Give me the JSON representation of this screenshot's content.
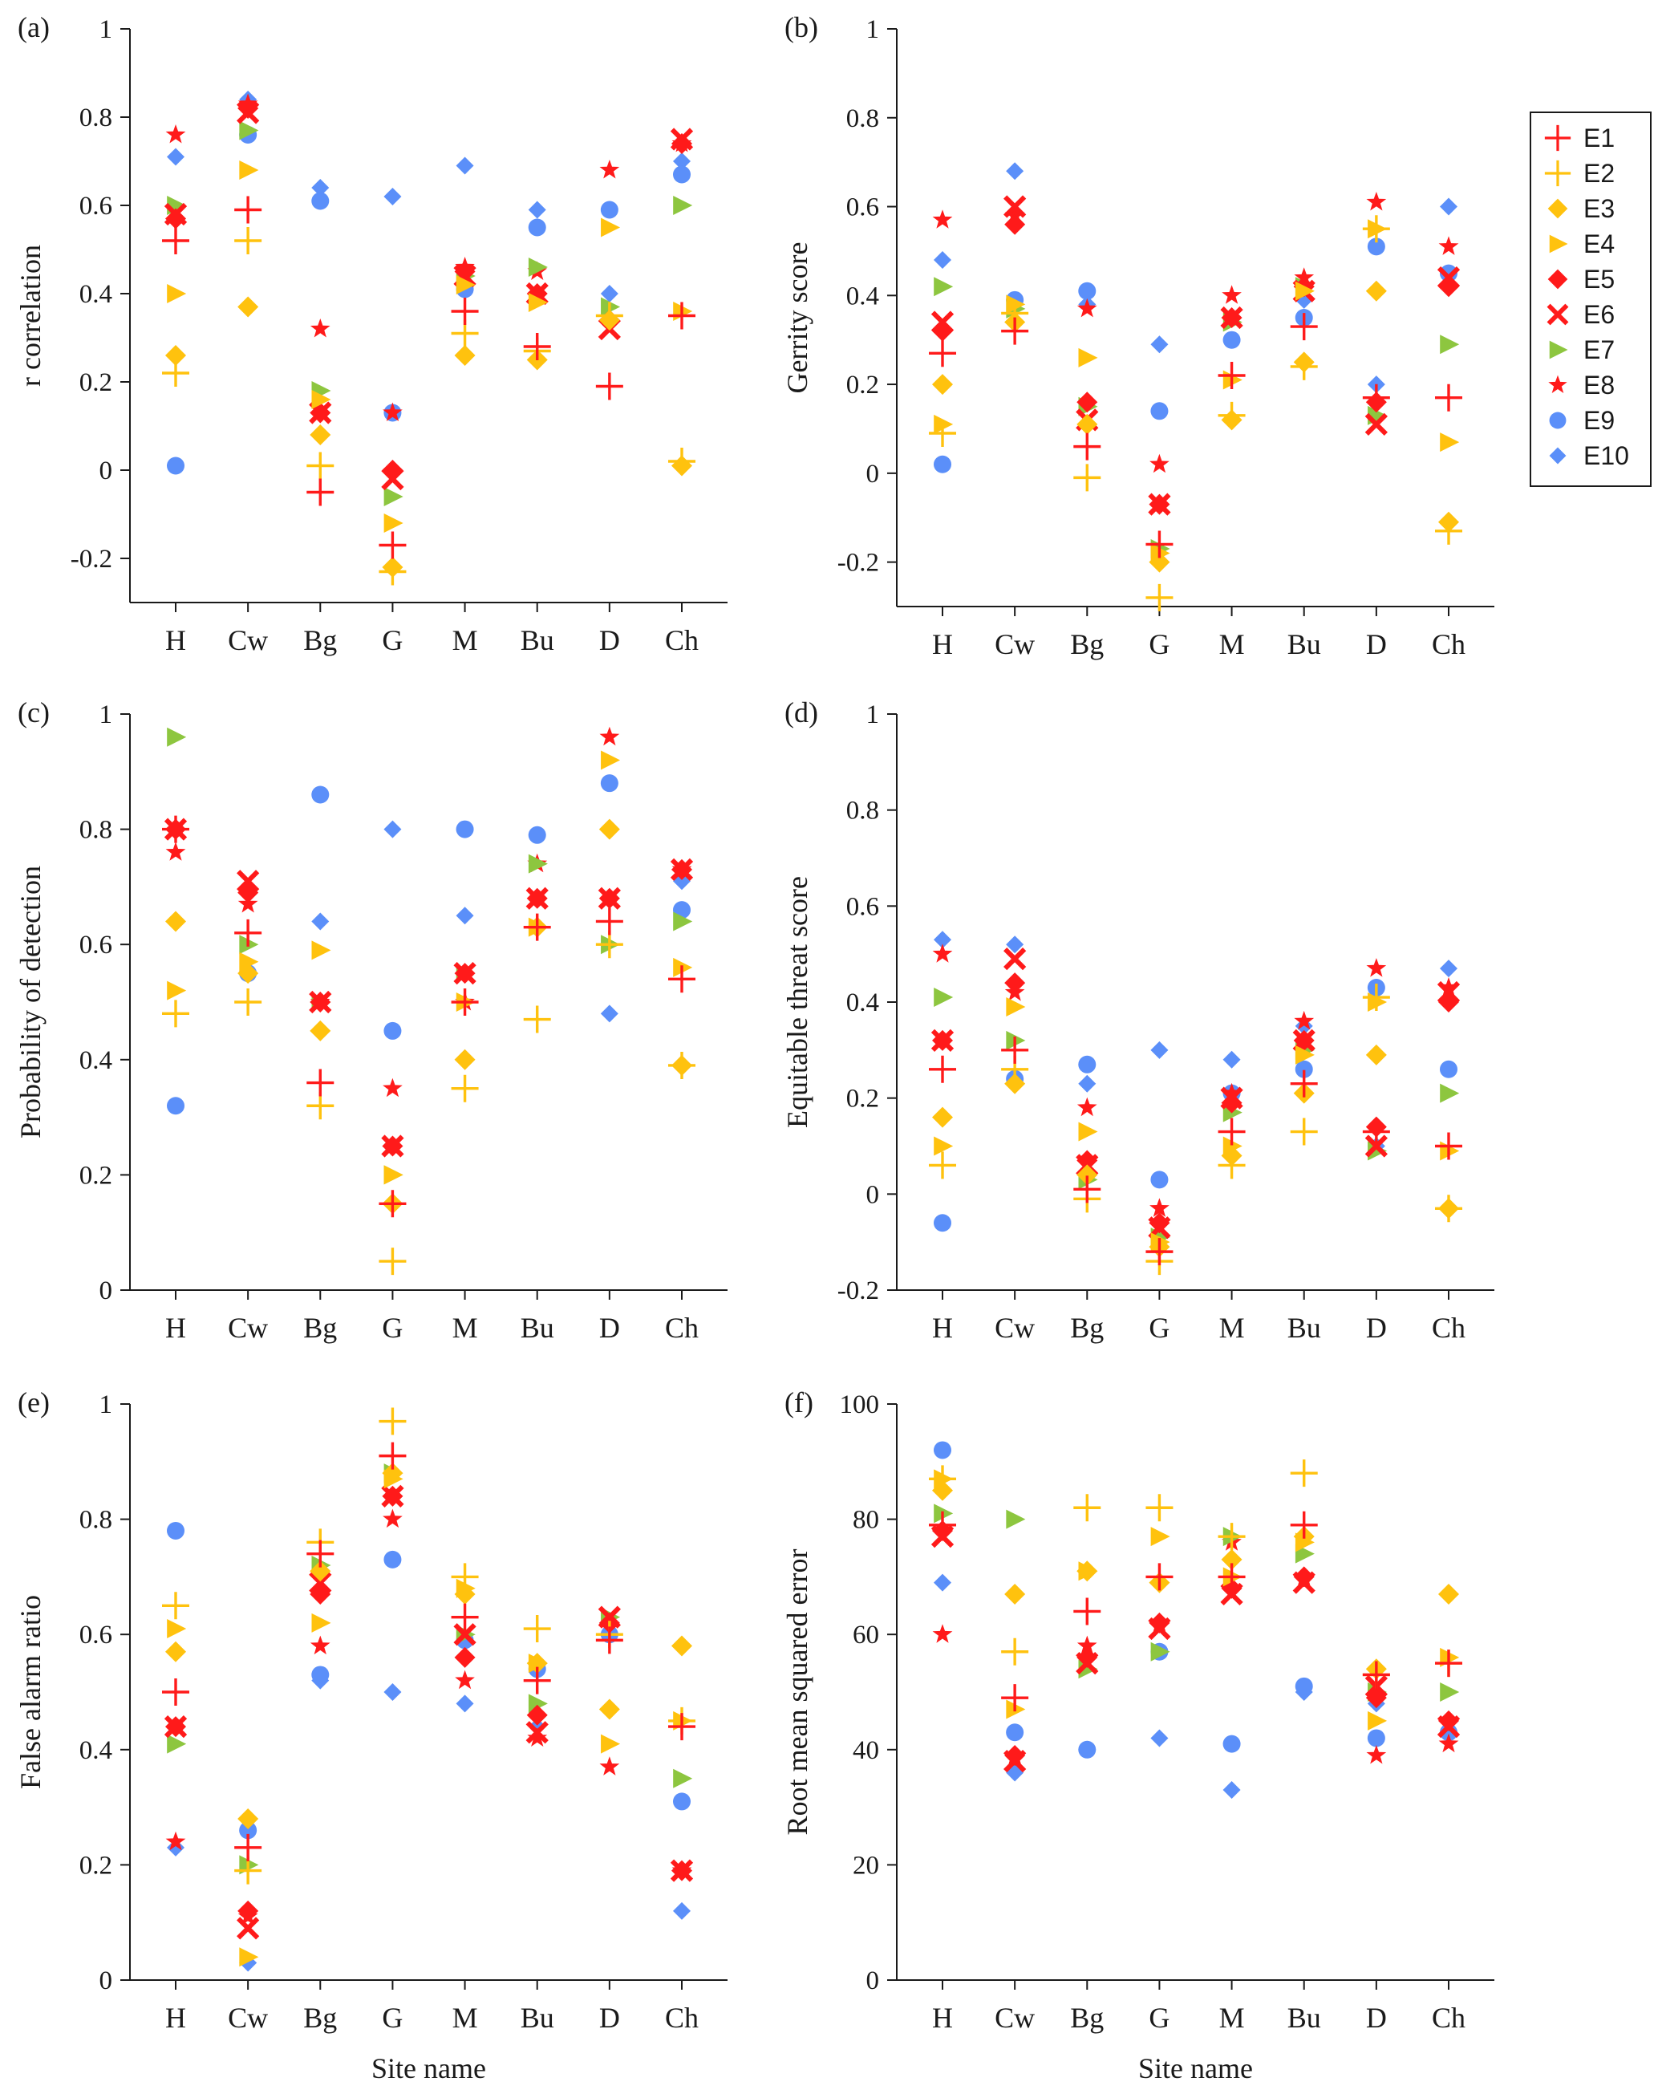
{
  "figure": {
    "categories": [
      "H",
      "Cw",
      "Bg",
      "G",
      "M",
      "Bu",
      "D",
      "Ch"
    ],
    "legend": [
      {
        "key": "E1",
        "label": "E1",
        "marker": "plus",
        "color": "#ff1a1a"
      },
      {
        "key": "E2",
        "label": "E2",
        "marker": "plus",
        "color": "#ffc20e"
      },
      {
        "key": "E3",
        "label": "E3",
        "marker": "diamond",
        "color": "#ffc20e"
      },
      {
        "key": "E4",
        "label": "E4",
        "marker": "triangle-right",
        "color": "#ffc20e"
      },
      {
        "key": "E5",
        "label": "E5",
        "marker": "diamond",
        "color": "#ff1a1a"
      },
      {
        "key": "E6",
        "label": "E6",
        "marker": "cross",
        "color": "#ff1a1a"
      },
      {
        "key": "E7",
        "label": "E7",
        "marker": "triangle-right",
        "color": "#8dc63f"
      },
      {
        "key": "E8",
        "label": "E8",
        "marker": "star",
        "color": "#ff1a1a"
      },
      {
        "key": "E9",
        "label": "E9",
        "marker": "circle",
        "color": "#5b8ff9"
      },
      {
        "key": "E10",
        "label": "E10",
        "marker": "diamond-small",
        "color": "#5b8ff9"
      }
    ]
  },
  "chart_data": [
    {
      "type": "scatter",
      "panel": "(a)",
      "title": "",
      "ylabel": "r correlation",
      "xlabel": "",
      "ylim": [
        -0.3,
        1
      ],
      "yticks": [
        -0.2,
        0,
        0.2,
        0.4,
        0.6,
        0.8,
        1
      ],
      "ytick_labels": [
        "-0.2",
        "0",
        "0.2",
        "0.4",
        "0.6",
        "0.8",
        "1"
      ],
      "categories": [
        "H",
        "Cw",
        "Bg",
        "G",
        "M",
        "Bu",
        "D",
        "Ch"
      ],
      "series": [
        {
          "name": "E1",
          "values": [
            0.52,
            0.59,
            -0.05,
            -0.17,
            0.36,
            0.28,
            0.19,
            0.35
          ]
        },
        {
          "name": "E2",
          "values": [
            0.22,
            0.52,
            0.01,
            -0.23,
            0.31,
            0.27,
            0.35,
            0.02
          ]
        },
        {
          "name": "E3",
          "values": [
            0.26,
            0.37,
            0.08,
            -0.22,
            0.26,
            0.25,
            0.34,
            0.01
          ]
        },
        {
          "name": "E4",
          "values": [
            0.4,
            0.68,
            0.16,
            -0.12,
            0.42,
            0.38,
            0.55,
            0.36
          ]
        },
        {
          "name": "E5",
          "values": [
            0.57,
            0.82,
            0.13,
            0.0,
            0.45,
            0.4,
            0.34,
            0.74
          ]
        },
        {
          "name": "E6",
          "values": [
            0.58,
            0.81,
            0.13,
            -0.02,
            0.44,
            0.4,
            0.32,
            0.75
          ]
        },
        {
          "name": "E7",
          "values": [
            0.6,
            0.77,
            0.18,
            -0.06,
            0.44,
            0.46,
            0.37,
            0.6
          ]
        },
        {
          "name": "E8",
          "values": [
            0.76,
            0.83,
            0.32,
            0.13,
            0.46,
            0.45,
            0.68,
            0.74
          ]
        },
        {
          "name": "E9",
          "values": [
            0.01,
            0.76,
            0.61,
            0.13,
            0.41,
            0.55,
            0.59,
            0.67
          ]
        },
        {
          "name": "E10",
          "values": [
            0.71,
            0.84,
            0.64,
            0.62,
            0.69,
            0.59,
            0.4,
            0.7
          ]
        }
      ]
    },
    {
      "type": "scatter",
      "panel": "(b)",
      "title": "",
      "ylabel": "Gerrity score",
      "xlabel": "",
      "ylim": [
        -0.3,
        1
      ],
      "yticks": [
        -0.2,
        0,
        0.2,
        0.4,
        0.6,
        0.8,
        1
      ],
      "ytick_labels": [
        "-0.2",
        "0",
        "0.2",
        "0.4",
        "0.6",
        "0.8",
        "1"
      ],
      "categories": [
        "H",
        "Cw",
        "Bg",
        "G",
        "M",
        "Bu",
        "D",
        "Ch"
      ],
      "series": [
        {
          "name": "E1",
          "values": [
            0.27,
            0.32,
            0.06,
            -0.16,
            0.22,
            0.33,
            0.17,
            0.17
          ]
        },
        {
          "name": "E2",
          "values": [
            0.09,
            0.36,
            -0.01,
            -0.28,
            0.13,
            0.24,
            0.55,
            -0.13
          ]
        },
        {
          "name": "E3",
          "values": [
            0.2,
            0.34,
            0.11,
            -0.2,
            0.12,
            0.25,
            0.41,
            -0.11
          ]
        },
        {
          "name": "E4",
          "values": [
            0.11,
            0.38,
            0.26,
            -0.18,
            0.21,
            0.41,
            0.55,
            0.07
          ]
        },
        {
          "name": "E5",
          "values": [
            0.32,
            0.56,
            0.16,
            -0.07,
            0.35,
            0.42,
            0.16,
            0.42
          ]
        },
        {
          "name": "E6",
          "values": [
            0.34,
            0.6,
            0.12,
            -0.07,
            0.35,
            0.41,
            0.11,
            0.44
          ]
        },
        {
          "name": "E7",
          "values": [
            0.42,
            0.37,
            0.15,
            -0.17,
            0.34,
            0.42,
            0.13,
            0.29
          ]
        },
        {
          "name": "E8",
          "values": [
            0.57,
            0.58,
            0.37,
            0.02,
            0.4,
            0.44,
            0.61,
            0.51
          ]
        },
        {
          "name": "E9",
          "values": [
            0.02,
            0.39,
            0.41,
            0.14,
            0.3,
            0.35,
            0.51,
            0.45
          ]
        },
        {
          "name": "E10",
          "values": [
            0.48,
            0.68,
            0.38,
            0.29,
            0.35,
            0.39,
            0.2,
            0.6
          ]
        }
      ]
    },
    {
      "type": "scatter",
      "panel": "(c)",
      "title": "",
      "ylabel": "Probability of detection",
      "xlabel": "",
      "ylim": [
        0,
        1
      ],
      "yticks": [
        0,
        0.2,
        0.4,
        0.6,
        0.8,
        1
      ],
      "ytick_labels": [
        "0",
        "0.2",
        "0.4",
        "0.6",
        "0.8",
        "1"
      ],
      "categories": [
        "H",
        "Cw",
        "Bg",
        "G",
        "M",
        "Bu",
        "D",
        "Ch"
      ],
      "series": [
        {
          "name": "E1",
          "values": [
            0.8,
            0.62,
            0.36,
            0.15,
            0.5,
            0.63,
            0.64,
            0.54
          ]
        },
        {
          "name": "E2",
          "values": [
            0.48,
            0.5,
            0.32,
            0.05,
            0.35,
            0.47,
            0.6,
            0.39
          ]
        },
        {
          "name": "E3",
          "values": [
            0.64,
            0.55,
            0.45,
            0.15,
            0.4,
            0.63,
            0.8,
            0.39
          ]
        },
        {
          "name": "E4",
          "values": [
            0.52,
            0.57,
            0.59,
            0.2,
            0.5,
            0.63,
            0.92,
            0.56
          ]
        },
        {
          "name": "E5",
          "values": [
            0.8,
            0.69,
            0.5,
            0.25,
            0.55,
            0.68,
            0.68,
            0.73
          ]
        },
        {
          "name": "E6",
          "values": [
            0.8,
            0.71,
            0.5,
            0.25,
            0.55,
            0.68,
            0.68,
            0.73
          ]
        },
        {
          "name": "E7",
          "values": [
            0.96,
            0.6,
            0.5,
            0.2,
            0.55,
            0.74,
            0.6,
            0.64
          ]
        },
        {
          "name": "E8",
          "values": [
            0.76,
            0.67,
            0.5,
            0.35,
            0.5,
            0.74,
            0.96,
            0.73
          ]
        },
        {
          "name": "E9",
          "values": [
            0.32,
            0.55,
            0.86,
            0.45,
            0.8,
            0.79,
            0.88,
            0.66
          ]
        },
        {
          "name": "E10",
          "values": [
            0.8,
            0.69,
            0.64,
            0.8,
            0.65,
            0.79,
            0.48,
            0.71
          ]
        }
      ]
    },
    {
      "type": "scatter",
      "panel": "(d)",
      "title": "",
      "ylabel": "Equitable threat score",
      "xlabel": "",
      "ylim": [
        -0.2,
        1
      ],
      "yticks": [
        -0.2,
        0,
        0.2,
        0.4,
        0.6,
        0.8,
        1
      ],
      "ytick_labels": [
        "-0.2",
        "0",
        "0.2",
        "0.4",
        "0.6",
        "0.8",
        "1"
      ],
      "categories": [
        "H",
        "Cw",
        "Bg",
        "G",
        "M",
        "Bu",
        "D",
        "Ch"
      ],
      "series": [
        {
          "name": "E1",
          "values": [
            0.26,
            0.3,
            0.01,
            -0.12,
            0.13,
            0.23,
            0.13,
            0.1
          ]
        },
        {
          "name": "E2",
          "values": [
            0.06,
            0.26,
            -0.01,
            -0.14,
            0.06,
            0.13,
            0.41,
            -0.03
          ]
        },
        {
          "name": "E3",
          "values": [
            0.16,
            0.23,
            0.04,
            -0.11,
            0.08,
            0.21,
            0.29,
            -0.03
          ]
        },
        {
          "name": "E4",
          "values": [
            0.1,
            0.39,
            0.13,
            -0.1,
            0.1,
            0.29,
            0.4,
            0.09
          ]
        },
        {
          "name": "E5",
          "values": [
            0.32,
            0.44,
            0.07,
            -0.06,
            0.19,
            0.32,
            0.14,
            0.4
          ]
        },
        {
          "name": "E6",
          "values": [
            0.32,
            0.49,
            0.06,
            -0.07,
            0.2,
            0.32,
            0.1,
            0.42
          ]
        },
        {
          "name": "E7",
          "values": [
            0.41,
            0.32,
            0.03,
            -0.09,
            0.17,
            0.3,
            0.09,
            0.21
          ]
        },
        {
          "name": "E8",
          "values": [
            0.5,
            0.42,
            0.18,
            -0.03,
            0.21,
            0.36,
            0.47,
            0.43
          ]
        },
        {
          "name": "E9",
          "values": [
            -0.06,
            0.24,
            0.27,
            0.03,
            0.21,
            0.26,
            0.43,
            0.26
          ]
        },
        {
          "name": "E10",
          "values": [
            0.53,
            0.52,
            0.23,
            0.3,
            0.28,
            0.35,
            0.1,
            0.47
          ]
        }
      ]
    },
    {
      "type": "scatter",
      "panel": "(e)",
      "title": "",
      "ylabel": "False alarm ratio",
      "xlabel": "Site name",
      "ylim": [
        0,
        1
      ],
      "yticks": [
        0,
        0.2,
        0.4,
        0.6,
        0.8,
        1
      ],
      "ytick_labels": [
        "0",
        "0.2",
        "0.4",
        "0.6",
        "0.8",
        "1"
      ],
      "categories": [
        "H",
        "Cw",
        "Bg",
        "G",
        "M",
        "Bu",
        "D",
        "Ch"
      ],
      "series": [
        {
          "name": "E1",
          "values": [
            0.5,
            0.23,
            0.74,
            0.91,
            0.63,
            0.52,
            0.59,
            0.44
          ]
        },
        {
          "name": "E2",
          "values": [
            0.65,
            0.19,
            0.76,
            0.97,
            0.7,
            0.61,
            0.6,
            0.45
          ]
        },
        {
          "name": "E3",
          "values": [
            0.57,
            0.28,
            0.71,
            0.88,
            0.67,
            0.55,
            0.47,
            0.58
          ]
        },
        {
          "name": "E4",
          "values": [
            0.61,
            0.04,
            0.62,
            0.87,
            0.68,
            0.55,
            0.41,
            0.45
          ]
        },
        {
          "name": "E5",
          "values": [
            0.44,
            0.12,
            0.67,
            0.84,
            0.56,
            0.46,
            0.62,
            0.19
          ]
        },
        {
          "name": "E6",
          "values": [
            0.44,
            0.09,
            0.69,
            0.84,
            0.6,
            0.43,
            0.63,
            0.19
          ]
        },
        {
          "name": "E7",
          "values": [
            0.41,
            0.2,
            0.72,
            0.88,
            0.6,
            0.48,
            0.63,
            0.35
          ]
        },
        {
          "name": "E8",
          "values": [
            0.24,
            0.11,
            0.58,
            0.8,
            0.52,
            0.42,
            0.37,
            0.19
          ]
        },
        {
          "name": "E9",
          "values": [
            0.78,
            0.26,
            0.53,
            0.73,
            0.59,
            0.54,
            0.6,
            0.31
          ]
        },
        {
          "name": "E10",
          "values": [
            0.23,
            0.03,
            0.52,
            0.5,
            0.48,
            0.44,
            0.6,
            0.12
          ]
        }
      ]
    },
    {
      "type": "scatter",
      "panel": "(f)",
      "title": "",
      "ylabel": "Root mean squared error",
      "xlabel": "Site name",
      "ylim": [
        0,
        100
      ],
      "yticks": [
        0,
        20,
        40,
        60,
        80,
        100
      ],
      "ytick_labels": [
        "0",
        "20",
        "40",
        "60",
        "80",
        "100"
      ],
      "categories": [
        "H",
        "Cw",
        "Bg",
        "G",
        "M",
        "Bu",
        "D",
        "Ch"
      ],
      "series": [
        {
          "name": "E1",
          "values": [
            79,
            49,
            64,
            70,
            70,
            79,
            53,
            55
          ]
        },
        {
          "name": "E2",
          "values": [
            87,
            57,
            82,
            82,
            77,
            88,
            53,
            55
          ]
        },
        {
          "name": "E3",
          "values": [
            85,
            67,
            71,
            69,
            73,
            77,
            54,
            67
          ]
        },
        {
          "name": "E4",
          "values": [
            87,
            47,
            71,
            77,
            70,
            76,
            45,
            56
          ]
        },
        {
          "name": "E5",
          "values": [
            78,
            39,
            56,
            62,
            68,
            70,
            49,
            45
          ]
        },
        {
          "name": "E6",
          "values": [
            77,
            38,
            55,
            61,
            67,
            69,
            51,
            44
          ]
        },
        {
          "name": "E7",
          "values": [
            81,
            80,
            54,
            57,
            77,
            74,
            50,
            50
          ]
        },
        {
          "name": "E8",
          "values": [
            60,
            39,
            58,
            62,
            76,
            70,
            39,
            41
          ]
        },
        {
          "name": "E9",
          "values": [
            92,
            43,
            40,
            57,
            41,
            51,
            42,
            43
          ]
        },
        {
          "name": "E10",
          "values": [
            69,
            36,
            40,
            42,
            33,
            50,
            48,
            43
          ]
        }
      ]
    }
  ]
}
